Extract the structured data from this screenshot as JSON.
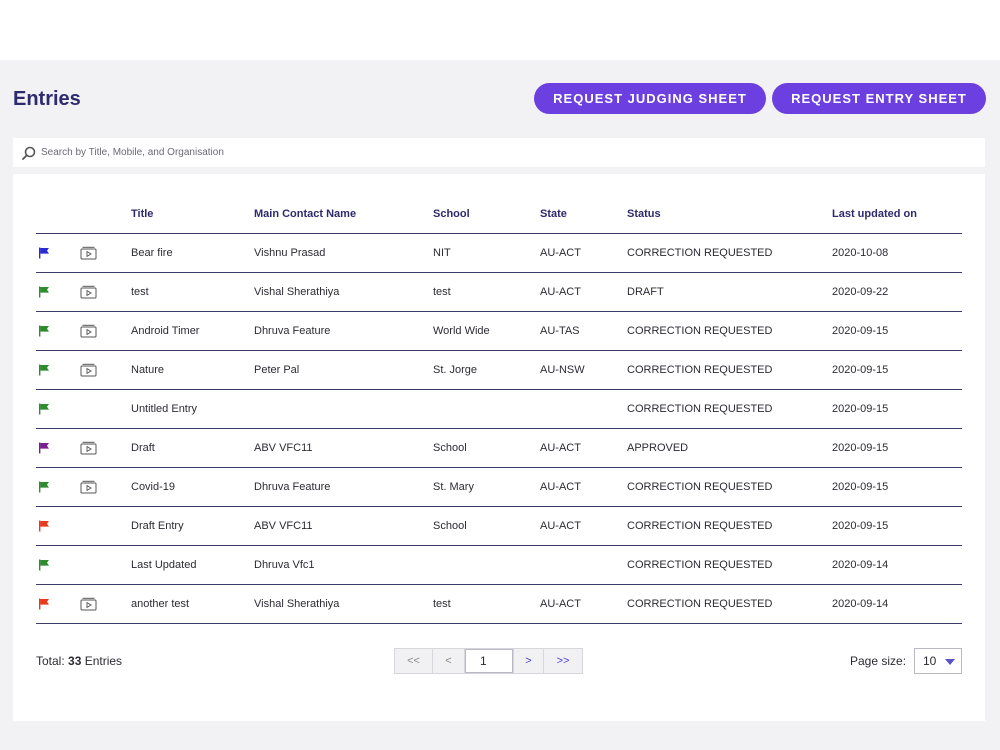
{
  "header": {
    "title": "Entries",
    "request_judging_label": "REQUEST JUDGING SHEET",
    "request_entry_label": "REQUEST ENTRY SHEET"
  },
  "search": {
    "placeholder": "Search by Title, Mobile, and Organisation",
    "value": ""
  },
  "table": {
    "columns": [
      "",
      "",
      "Title",
      "Main Contact Name",
      "School",
      "State",
      "Status",
      "Last updated on"
    ],
    "rows": [
      {
        "flag": "flag-blue-icon",
        "flag_color": "#2b2bd6",
        "video": true,
        "title": "Bear fire",
        "contact": "Vishnu Prasad",
        "school": "NIT",
        "state": "AU-ACT",
        "status": "CORRECTION REQUESTED",
        "updated": "2020-10-08"
      },
      {
        "flag": "flag-green-icon",
        "flag_color": "#2e8b2e",
        "video": true,
        "title": "test",
        "contact": "Vishal Sherathiya",
        "school": "test",
        "state": "AU-ACT",
        "status": "DRAFT",
        "updated": "2020-09-22"
      },
      {
        "flag": "flag-green-icon",
        "flag_color": "#2e8b2e",
        "video": true,
        "title": "Android Timer",
        "contact": "Dhruva Feature",
        "school": "World Wide",
        "state": "AU-TAS",
        "status": "CORRECTION REQUESTED",
        "updated": "2020-09-15"
      },
      {
        "flag": "flag-green-icon",
        "flag_color": "#2e8b2e",
        "video": true,
        "title": "Nature",
        "contact": "Peter Pal",
        "school": "St. Jorge",
        "state": "AU-NSW",
        "status": "CORRECTION REQUESTED",
        "updated": "2020-09-15"
      },
      {
        "flag": "flag-green-icon",
        "flag_color": "#2e8b2e",
        "video": false,
        "title": "Untitled Entry",
        "contact": "",
        "school": "",
        "state": "",
        "status": "CORRECTION REQUESTED",
        "updated": "2020-09-15"
      },
      {
        "flag": "flag-purple-icon",
        "flag_color": "#7a1f8f",
        "video": true,
        "title": "Draft",
        "contact": "ABV VFC11",
        "school": "School",
        "state": "AU-ACT",
        "status": "APPROVED",
        "updated": "2020-09-15"
      },
      {
        "flag": "flag-green-icon",
        "flag_color": "#2e8b2e",
        "video": true,
        "title": "Covid-19",
        "contact": "Dhruva Feature",
        "school": "St. Mary",
        "state": "AU-ACT",
        "status": "CORRECTION REQUESTED",
        "updated": "2020-09-15"
      },
      {
        "flag": "flag-red-icon",
        "flag_color": "#e8391c",
        "video": false,
        "title": "Draft Entry",
        "contact": "ABV VFC11",
        "school": "School",
        "state": "AU-ACT",
        "status": "CORRECTION REQUESTED",
        "updated": "2020-09-15"
      },
      {
        "flag": "flag-green-icon",
        "flag_color": "#2e8b2e",
        "video": false,
        "title": "Last Updated",
        "contact": "Dhruva Vfc1",
        "school": "",
        "state": "",
        "status": "CORRECTION REQUESTED",
        "updated": "2020-09-14"
      },
      {
        "flag": "flag-red-icon",
        "flag_color": "#e8391c",
        "video": true,
        "title": "another test",
        "contact": "Vishal Sherathiya",
        "school": "test",
        "state": "AU-ACT",
        "status": "CORRECTION REQUESTED",
        "updated": "2020-09-14"
      }
    ]
  },
  "footer": {
    "total_prefix": "Total: ",
    "total_count": "33",
    "total_suffix": " Entries",
    "pager": {
      "first": "<<",
      "prev": "<",
      "current_page": "1",
      "next": ">",
      "last": ">>"
    },
    "page_size_label": "Page size:",
    "page_size_value": "10"
  },
  "colors": {
    "accent": "#6c3fe0",
    "title": "#2e2a6e"
  }
}
